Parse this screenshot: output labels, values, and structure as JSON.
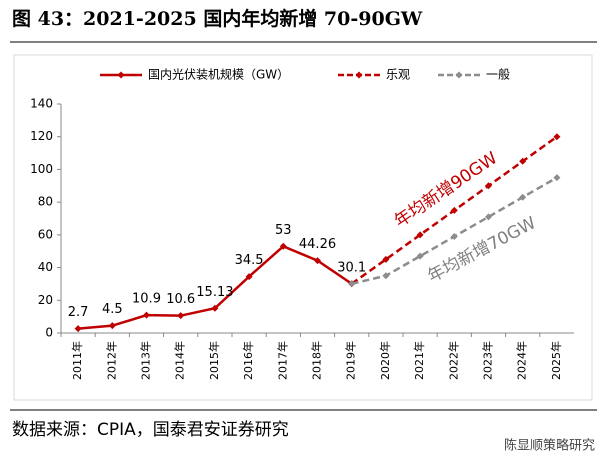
{
  "chart_data": {
    "type": "line",
    "title": "图 43：2021-2025 国内年均新增 70-90GW",
    "source": "数据来源：CPIA，国泰君安证券研究",
    "watermark": "陈显顺策略研究",
    "categories": [
      "2011年",
      "2012年",
      "2013年",
      "2014年",
      "2015年",
      "2016年",
      "2017年",
      "2018年",
      "2019年",
      "2020年",
      "2021年",
      "2022年",
      "2023年",
      "2024年",
      "2025年"
    ],
    "series": [
      {
        "name": "国内光伏装机规模（GW）",
        "color": "#c00000",
        "dashed": false,
        "labels": true,
        "values": [
          2.7,
          4.5,
          10.9,
          10.6,
          15.13,
          34.5,
          53,
          44.26,
          30.1,
          null,
          null,
          null,
          null,
          null,
          null
        ]
      },
      {
        "name": "乐观",
        "color": "#c00000",
        "dashed": true,
        "labels": false,
        "values": [
          null,
          null,
          null,
          null,
          null,
          null,
          null,
          null,
          30.1,
          45,
          60,
          75,
          90,
          105,
          120
        ]
      },
      {
        "name": "一般",
        "color": "#8c8c8c",
        "dashed": true,
        "labels": false,
        "values": [
          null,
          null,
          null,
          null,
          null,
          null,
          null,
          null,
          30.1,
          35,
          47,
          59,
          71,
          83,
          95
        ]
      }
    ],
    "annotations": [
      {
        "text": "年均新增90GW",
        "color": "#c00000"
      },
      {
        "text": "年均新增70GW",
        "color": "#7f7f7f"
      }
    ],
    "ylim": [
      0,
      140
    ],
    "yticks": [
      0,
      20,
      40,
      60,
      80,
      100,
      120,
      140
    ],
    "grid": false
  }
}
